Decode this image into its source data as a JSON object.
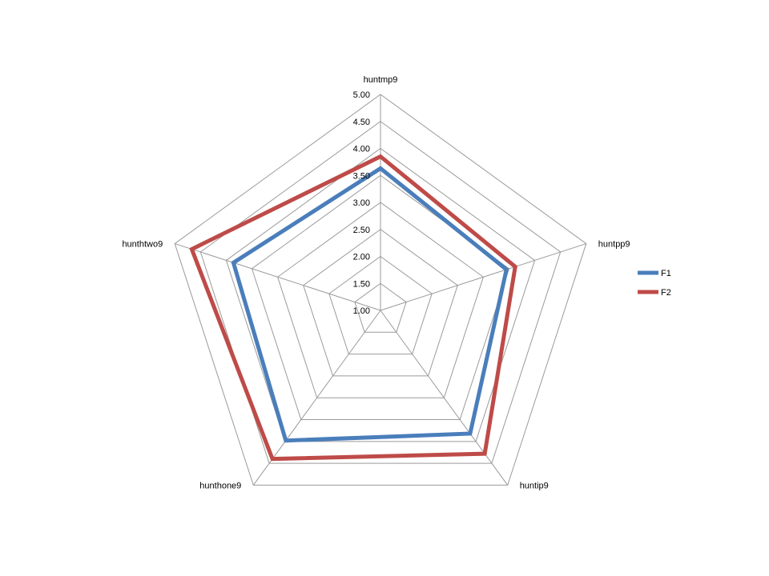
{
  "chart_data": {
    "type": "radar",
    "title": "",
    "axes": [
      "huntmp9",
      "huntpp9",
      "huntip9",
      "hunthone9",
      "hunthtwo9"
    ],
    "rlim": [
      1.0,
      5.0
    ],
    "ticks": [
      "1.00",
      "1.50",
      "2.00",
      "2.50",
      "3.00",
      "3.50",
      "4.00",
      "4.50",
      "5.00"
    ],
    "grid": true,
    "legend_position": "right",
    "series": [
      {
        "name": "F1",
        "color": "#4a7ebb",
        "values": [
          3.63,
          3.45,
          3.82,
          3.98,
          3.86
        ]
      },
      {
        "name": "F2",
        "color": "#be4b48",
        "values": [
          3.85,
          3.62,
          4.28,
          4.4,
          4.67
        ]
      }
    ]
  }
}
